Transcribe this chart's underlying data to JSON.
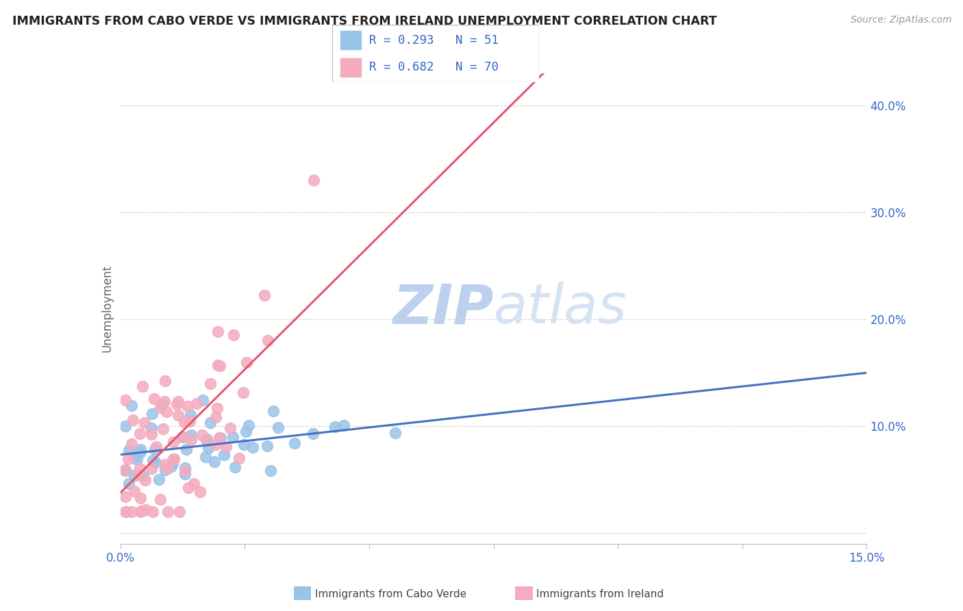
{
  "title": "IMMIGRANTS FROM CABO VERDE VS IMMIGRANTS FROM IRELAND UNEMPLOYMENT CORRELATION CHART",
  "source": "Source: ZipAtlas.com",
  "ylabel": "Unemployment",
  "xlim": [
    0.0,
    0.15
  ],
  "ylim": [
    -0.01,
    0.43
  ],
  "yticks": [
    0.0,
    0.1,
    0.2,
    0.3,
    0.4
  ],
  "ytick_labels_right": [
    "",
    "10.0%",
    "20.0%",
    "30.0%",
    "40.0%"
  ],
  "xticks": [
    0.0,
    0.025,
    0.05,
    0.075,
    0.1,
    0.125,
    0.15
  ],
  "xtick_labels": [
    "0.0%",
    "",
    "",
    "",
    "",
    "",
    "15.0%"
  ],
  "legend_R1": "0.293",
  "legend_N1": "51",
  "legend_R2": "0.682",
  "legend_N2": "70",
  "blue_color": "#99C4E8",
  "pink_color": "#F4ABBE",
  "blue_line_color": "#4472C4",
  "pink_line_color": "#E8556A",
  "watermark_zip": "ZIP",
  "watermark_atlas": "atlas",
  "watermark_color_zip": "#C8D8F0",
  "watermark_color_atlas": "#D0DCF0",
  "grid_color": "#CCCCCC",
  "bottom_legend_label1": "Immigrants from Cabo Verde",
  "bottom_legend_label2": "Immigrants from Ireland"
}
